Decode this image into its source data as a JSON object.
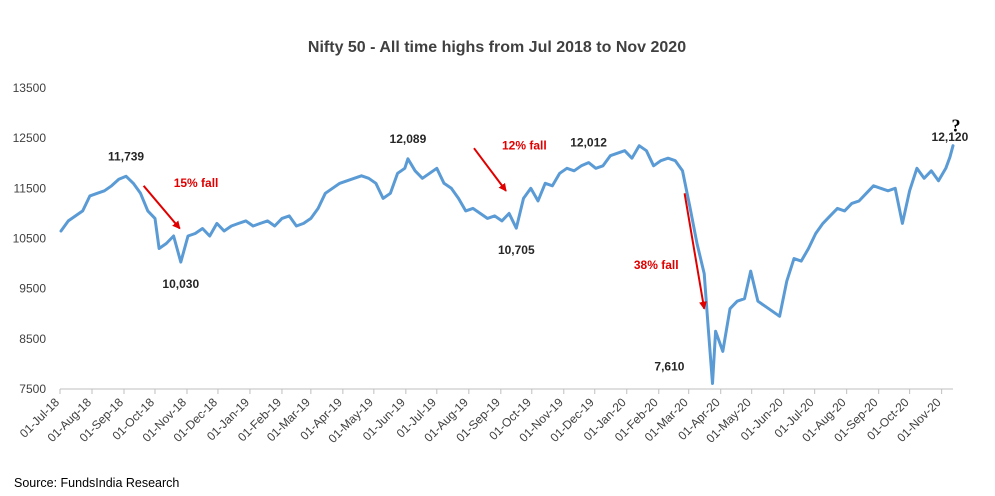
{
  "chart_data": {
    "type": "line",
    "title": "Nifty 50 - All time highs from Jul 2018 to Nov 2020",
    "xlabel": "",
    "ylabel": "",
    "ylim": [
      7500,
      13500
    ],
    "yticks": [
      "13500",
      "12500",
      "11500",
      "10500",
      "9500",
      "8500",
      "7500"
    ],
    "xticks": [
      "01-Jul-18",
      "01-Aug-18",
      "01-Sep-18",
      "01-Oct-18",
      "01-Nov-18",
      "01-Dec-18",
      "01-Jan-19",
      "01-Feb-19",
      "01-Mar-19",
      "01-Apr-19",
      "01-May-19",
      "01-Jun-19",
      "01-Jul-19",
      "01-Aug-19",
      "01-Sep-19",
      "01-Oct-19",
      "01-Nov-19",
      "01-Dec-19",
      "01-Jan-20",
      "01-Feb-20",
      "01-Mar-20",
      "01-Apr-20",
      "01-May-20",
      "01-Jun-20",
      "01-Jul-20",
      "01-Aug-20",
      "01-Sep-20",
      "01-Oct-20",
      "01-Nov-20"
    ],
    "series": [
      {
        "color": "#5b9bd5",
        "points": [
          [
            "2018-07-02",
            10650
          ],
          [
            "2018-07-09",
            10850
          ],
          [
            "2018-07-16",
            10950
          ],
          [
            "2018-07-23",
            11050
          ],
          [
            "2018-07-30",
            11350
          ],
          [
            "2018-08-06",
            11400
          ],
          [
            "2018-08-13",
            11450
          ],
          [
            "2018-08-20",
            11550
          ],
          [
            "2018-08-27",
            11680
          ],
          [
            "2018-09-03",
            11739
          ],
          [
            "2018-09-10",
            11600
          ],
          [
            "2018-09-17",
            11400
          ],
          [
            "2018-09-24",
            11050
          ],
          [
            "2018-10-01",
            10900
          ],
          [
            "2018-10-05",
            10300
          ],
          [
            "2018-10-12",
            10400
          ],
          [
            "2018-10-19",
            10550
          ],
          [
            "2018-10-26",
            10030
          ],
          [
            "2018-11-02",
            10550
          ],
          [
            "2018-11-09",
            10600
          ],
          [
            "2018-11-16",
            10700
          ],
          [
            "2018-11-23",
            10550
          ],
          [
            "2018-11-30",
            10800
          ],
          [
            "2018-12-07",
            10650
          ],
          [
            "2018-12-14",
            10750
          ],
          [
            "2018-12-21",
            10800
          ],
          [
            "2018-12-28",
            10850
          ],
          [
            "2019-01-04",
            10750
          ],
          [
            "2019-01-11",
            10800
          ],
          [
            "2019-01-18",
            10850
          ],
          [
            "2019-01-25",
            10750
          ],
          [
            "2019-02-01",
            10900
          ],
          [
            "2019-02-08",
            10950
          ],
          [
            "2019-02-15",
            10750
          ],
          [
            "2019-02-22",
            10800
          ],
          [
            "2019-03-01",
            10900
          ],
          [
            "2019-03-08",
            11100
          ],
          [
            "2019-03-15",
            11400
          ],
          [
            "2019-03-22",
            11500
          ],
          [
            "2019-03-29",
            11600
          ],
          [
            "2019-04-05",
            11650
          ],
          [
            "2019-04-12",
            11700
          ],
          [
            "2019-04-19",
            11750
          ],
          [
            "2019-04-26",
            11700
          ],
          [
            "2019-05-03",
            11600
          ],
          [
            "2019-05-10",
            11300
          ],
          [
            "2019-05-17",
            11400
          ],
          [
            "2019-05-24",
            11800
          ],
          [
            "2019-05-31",
            11900
          ],
          [
            "2019-06-03",
            12089
          ],
          [
            "2019-06-10",
            11850
          ],
          [
            "2019-06-17",
            11700
          ],
          [
            "2019-06-24",
            11800
          ],
          [
            "2019-07-01",
            11900
          ],
          [
            "2019-07-08",
            11600
          ],
          [
            "2019-07-15",
            11500
          ],
          [
            "2019-07-22",
            11300
          ],
          [
            "2019-07-29",
            11050
          ],
          [
            "2019-08-05",
            11100
          ],
          [
            "2019-08-12",
            11000
          ],
          [
            "2019-08-19",
            10900
          ],
          [
            "2019-08-26",
            10950
          ],
          [
            "2019-09-02",
            10850
          ],
          [
            "2019-09-09",
            11000
          ],
          [
            "2019-09-16",
            10705
          ],
          [
            "2019-09-23",
            11300
          ],
          [
            "2019-09-30",
            11500
          ],
          [
            "2019-10-07",
            11250
          ],
          [
            "2019-10-14",
            11600
          ],
          [
            "2019-10-21",
            11550
          ],
          [
            "2019-10-28",
            11800
          ],
          [
            "2019-11-04",
            11900
          ],
          [
            "2019-11-11",
            11850
          ],
          [
            "2019-11-18",
            11950
          ],
          [
            "2019-11-25",
            12012
          ],
          [
            "2019-12-02",
            11900
          ],
          [
            "2019-12-09",
            11950
          ],
          [
            "2019-12-16",
            12150
          ],
          [
            "2019-12-23",
            12200
          ],
          [
            "2019-12-30",
            12250
          ],
          [
            "2020-01-06",
            12100
          ],
          [
            "2020-01-13",
            12350
          ],
          [
            "2020-01-20",
            12250
          ],
          [
            "2020-01-27",
            11950
          ],
          [
            "2020-02-03",
            12050
          ],
          [
            "2020-02-10",
            12100
          ],
          [
            "2020-02-17",
            12050
          ],
          [
            "2020-02-24",
            11850
          ],
          [
            "2020-03-02",
            11150
          ],
          [
            "2020-03-09",
            10400
          ],
          [
            "2020-03-16",
            9800
          ],
          [
            "2020-03-20",
            8700
          ],
          [
            "2020-03-24",
            7610
          ],
          [
            "2020-03-27",
            8650
          ],
          [
            "2020-04-03",
            8250
          ],
          [
            "2020-04-10",
            9100
          ],
          [
            "2020-04-17",
            9250
          ],
          [
            "2020-04-24",
            9300
          ],
          [
            "2020-04-30",
            9850
          ],
          [
            "2020-05-07",
            9250
          ],
          [
            "2020-05-14",
            9150
          ],
          [
            "2020-05-21",
            9050
          ],
          [
            "2020-05-28",
            8950
          ],
          [
            "2020-06-04",
            9650
          ],
          [
            "2020-06-11",
            10100
          ],
          [
            "2020-06-18",
            10050
          ],
          [
            "2020-06-25",
            10300
          ],
          [
            "2020-07-02",
            10600
          ],
          [
            "2020-07-09",
            10800
          ],
          [
            "2020-07-16",
            10950
          ],
          [
            "2020-07-23",
            11100
          ],
          [
            "2020-07-30",
            11050
          ],
          [
            "2020-08-06",
            11200
          ],
          [
            "2020-08-13",
            11250
          ],
          [
            "2020-08-20",
            11400
          ],
          [
            "2020-08-27",
            11550
          ],
          [
            "2020-09-03",
            11500
          ],
          [
            "2020-09-10",
            11450
          ],
          [
            "2020-09-17",
            11500
          ],
          [
            "2020-09-24",
            10800
          ],
          [
            "2020-10-01",
            11450
          ],
          [
            "2020-10-08",
            11900
          ],
          [
            "2020-10-15",
            11700
          ],
          [
            "2020-10-22",
            11850
          ],
          [
            "2020-10-29",
            11650
          ],
          [
            "2020-11-05",
            11900
          ],
          [
            "2020-11-09",
            12120
          ],
          [
            "2020-11-12",
            12350
          ]
        ]
      }
    ],
    "point_labels": [
      {
        "date": "2018-09-03",
        "value": 11739,
        "text": "11,739",
        "pos": "above"
      },
      {
        "date": "2018-10-26",
        "value": 10030,
        "text": "10,030",
        "pos": "below"
      },
      {
        "date": "2019-06-03",
        "value": 12089,
        "text": "12,089",
        "pos": "above"
      },
      {
        "date": "2019-09-16",
        "value": 10705,
        "text": "10,705",
        "pos": "below"
      },
      {
        "date": "2019-11-25",
        "value": 12012,
        "text": "12,012",
        "pos": "above"
      },
      {
        "date": "2020-03-24",
        "value": 7610,
        "text": "7,610",
        "pos": "left"
      },
      {
        "date": "2020-11-09",
        "value": 12120,
        "text": "12,120",
        "pos": "above"
      }
    ],
    "falls": [
      {
        "text": "15% fall",
        "from": [
          "2018-09-20",
          11550
        ],
        "to": [
          "2018-10-25",
          10700
        ]
      },
      {
        "text": "12% fall",
        "from": [
          "2019-08-06",
          12300
        ],
        "to": [
          "2019-09-06",
          11450
        ]
      },
      {
        "text": "38% fall",
        "from": [
          "2020-02-26",
          11400
        ],
        "to": [
          "2020-03-16",
          9100
        ]
      }
    ],
    "question_mark": "?",
    "grid": false,
    "legend": "none"
  },
  "source": "Source: FundsIndia Research"
}
